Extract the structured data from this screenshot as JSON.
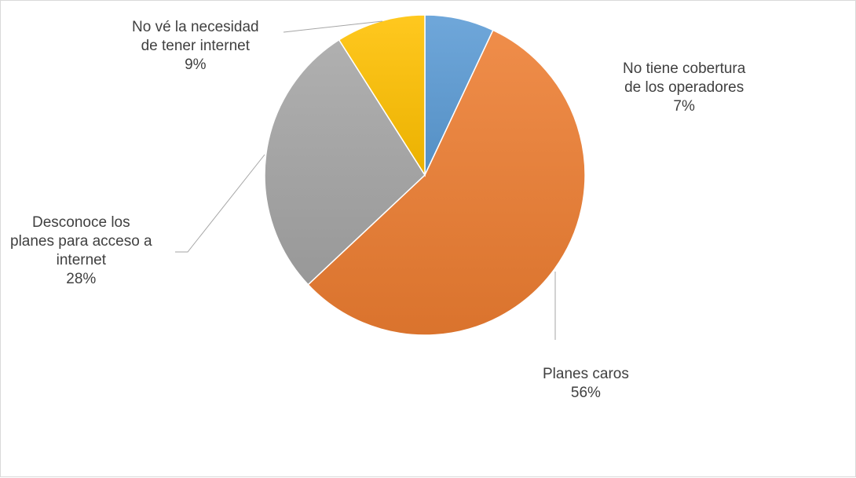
{
  "chart_data": {
    "type": "pie",
    "title": "",
    "start_angle_deg": 0,
    "direction": "clockwise",
    "slices": [
      {
        "name_lines": [
          "No tiene cobertura",
          "de los operadores"
        ],
        "value": 7,
        "label": "7%",
        "color": "#5b9bd5"
      },
      {
        "name_lines": [
          "Planes caros"
        ],
        "value": 56,
        "label": "56%",
        "color": "#ed7d31"
      },
      {
        "name_lines": [
          "Desconoce los",
          "planes para acceso a",
          "internet"
        ],
        "value": 28,
        "label": "28%",
        "color": "#a5a5a5"
      },
      {
        "name_lines": [
          "No vé la necesidad",
          "de tener internet"
        ],
        "value": 9,
        "label": "9%",
        "color": "#ffc000"
      }
    ]
  }
}
